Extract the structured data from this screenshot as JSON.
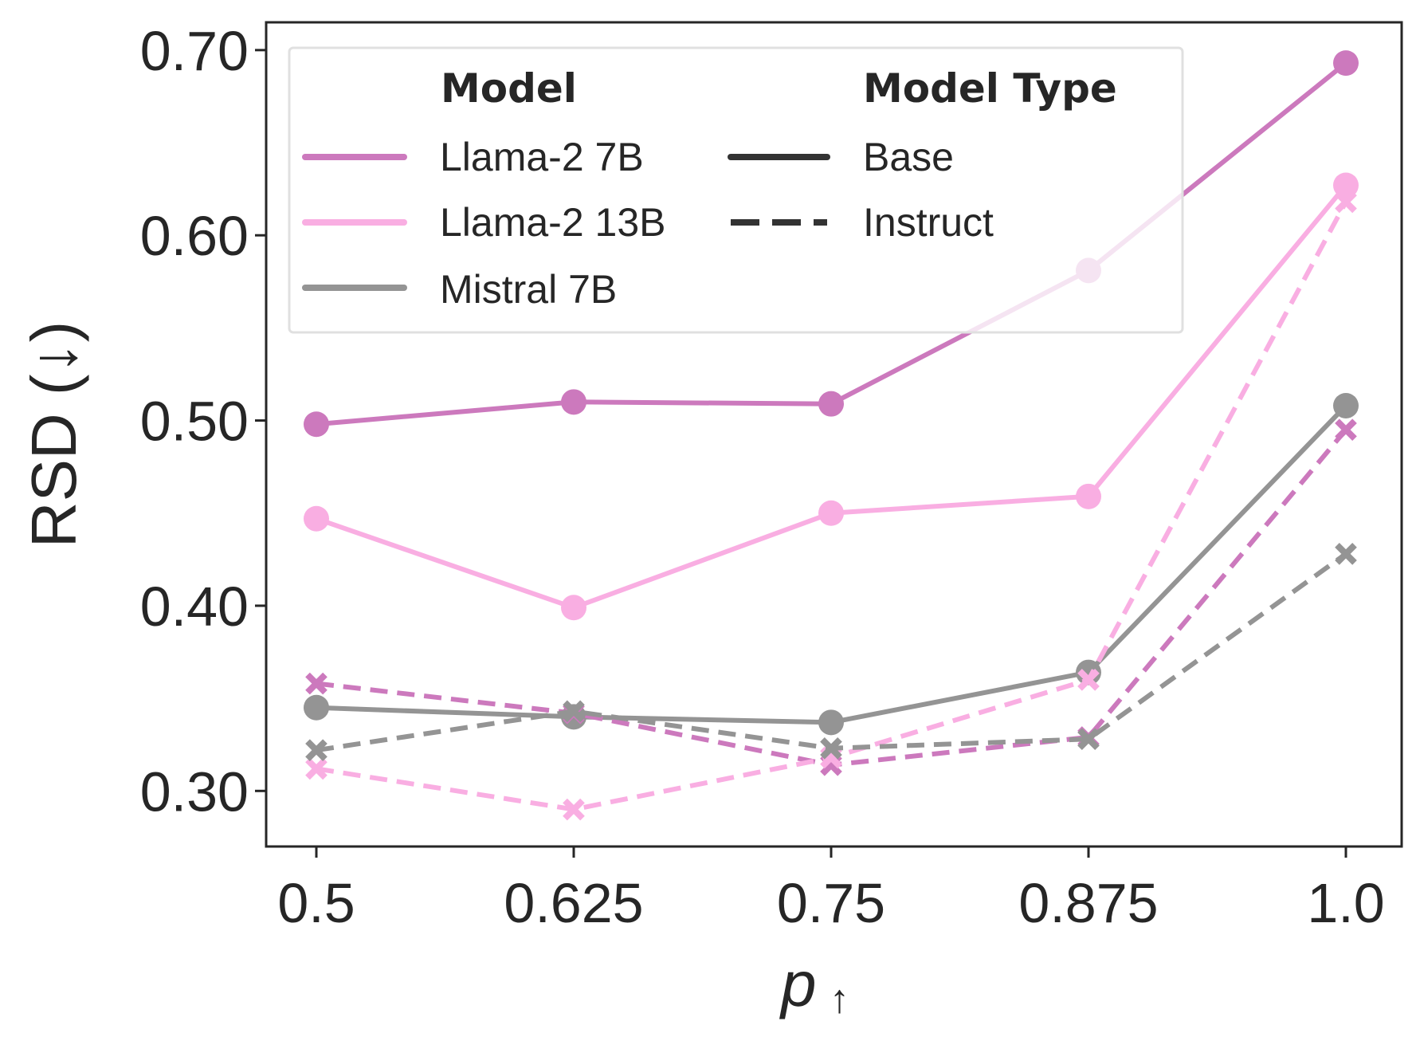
{
  "chart_data": {
    "type": "line",
    "xlabel": "p",
    "xlabel_suffix": "↑",
    "ylabel": "RSD (↓)",
    "categories": [
      "0.5",
      "0.625",
      "0.75",
      "0.875",
      "1.0"
    ],
    "x": [
      0.5,
      0.625,
      0.75,
      0.875,
      1.0
    ],
    "ylim": [
      0.27,
      0.715
    ],
    "yticks": [
      0.3,
      0.4,
      0.5,
      0.6,
      0.7
    ],
    "ytick_labels": [
      "0.30",
      "0.40",
      "0.50",
      "0.60",
      "0.70"
    ],
    "grid": false,
    "legend": {
      "position": "top-left",
      "model_title": "Model",
      "type_title": "Model Type",
      "models": [
        {
          "name": "Llama-2 7B",
          "color": "#cc79bd"
        },
        {
          "name": "Llama-2 13B",
          "color": "#f9aee2"
        },
        {
          "name": "Mistral 7B",
          "color": "#949494"
        }
      ],
      "types": [
        {
          "name": "Base",
          "dash": "solid",
          "marker": "circle"
        },
        {
          "name": "Instruct",
          "dash": "dashed",
          "marker": "x"
        }
      ],
      "type_color": "#333333"
    },
    "series": [
      {
        "name": "Llama-2 7B Base",
        "model": "Llama-2 7B",
        "type": "Base",
        "color": "#cc79bd",
        "values": [
          0.498,
          0.51,
          0.509,
          0.581,
          0.693
        ]
      },
      {
        "name": "Llama-2 13B Base",
        "model": "Llama-2 13B",
        "type": "Base",
        "color": "#f9aee2",
        "values": [
          0.447,
          0.399,
          0.45,
          0.459,
          0.627
        ]
      },
      {
        "name": "Mistral 7B Base",
        "model": "Mistral 7B",
        "type": "Base",
        "color": "#949494",
        "values": [
          0.345,
          0.34,
          0.337,
          0.364,
          0.508
        ]
      },
      {
        "name": "Llama-2 7B Instruct",
        "model": "Llama-2 7B",
        "type": "Instruct",
        "color": "#cc79bd",
        "values": [
          0.358,
          0.342,
          0.314,
          0.329,
          0.495
        ]
      },
      {
        "name": "Llama-2 13B Instruct",
        "model": "Llama-2 13B",
        "type": "Instruct",
        "color": "#f9aee2",
        "values": [
          0.312,
          0.29,
          0.318,
          0.36,
          0.618
        ]
      },
      {
        "name": "Mistral 7B Instruct",
        "model": "Mistral 7B",
        "type": "Instruct",
        "color": "#949494",
        "values": [
          0.322,
          0.343,
          0.323,
          0.328,
          0.428
        ]
      }
    ]
  }
}
